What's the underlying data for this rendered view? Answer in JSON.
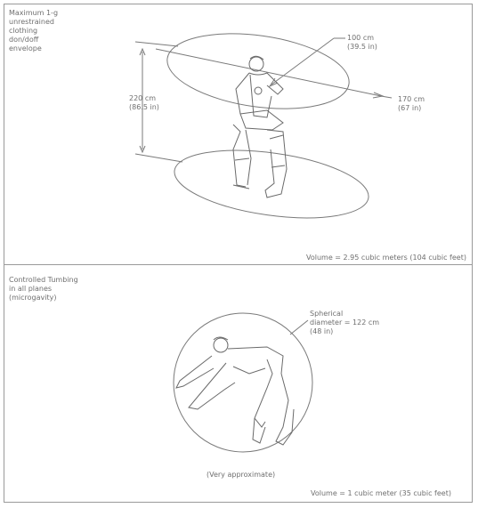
{
  "panel_top": {
    "heading": "Maximum 1-g\nunrestrained\nclothing\ndon/doff\nenvelope",
    "depth_label": "100 cm\n(39.5 in)",
    "height_label": "220 cm\n(86.5 in)",
    "width_label": "170 cm\n(67 in)",
    "volume": "Volume = 2.95 cubic meters (104 cubic feet)"
  },
  "panel_bottom": {
    "heading": "Controlled Tumbing\nin all planes\n(microgavity)",
    "sphere_label": "Spherical\ndiameter = 122 cm\n(48 in)",
    "note": "(Very approximate)",
    "volume": "Volume = 1 cubic meter (35 cubic feet)"
  },
  "colors": {
    "line": "#7a7a7a",
    "text": "#6f6f6f",
    "frame": "#9a9a9a"
  }
}
